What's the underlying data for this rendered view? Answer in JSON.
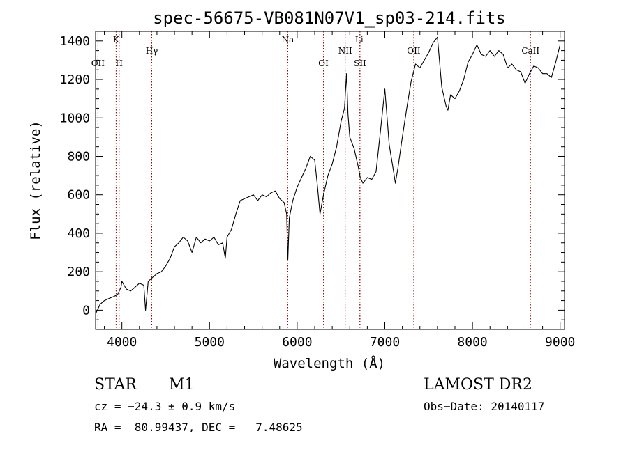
{
  "chart_data": {
    "type": "line",
    "title": "spec-56675-VB081N07V1_sp03-214.fits",
    "xlabel": "Wavelength (Å)",
    "ylabel": "Flux (relative)",
    "xlim": [
      3700,
      9050
    ],
    "ylim": [
      -100,
      1450
    ],
    "x_ticks": [
      4000,
      5000,
      6000,
      7000,
      8000,
      9000
    ],
    "y_ticks": [
      0,
      200,
      400,
      600,
      800,
      1000,
      1200,
      1400
    ],
    "grid": false,
    "series": [
      {
        "x": [
          3700,
          3750,
          3800,
          3850,
          3900,
          3950,
          3990,
          4000,
          4050,
          4100,
          4150,
          4200,
          4250,
          4270,
          4300,
          4350,
          4400,
          4450,
          4500,
          4550,
          4600,
          4650,
          4700,
          4750,
          4800,
          4850,
          4900,
          4950,
          5000,
          5050,
          5100,
          5150,
          5180,
          5200,
          5250,
          5300,
          5350,
          5400,
          5450,
          5500,
          5550,
          5600,
          5650,
          5700,
          5750,
          5800,
          5850,
          5880,
          5893,
          5910,
          5950,
          6000,
          6050,
          6100,
          6150,
          6200,
          6230,
          6260,
          6300,
          6350,
          6400,
          6450,
          6500,
          6540,
          6563,
          6580,
          6600,
          6650,
          6700,
          6720,
          6750,
          6800,
          6850,
          6900,
          6950,
          7000,
          7050,
          7100,
          7120,
          7150,
          7200,
          7250,
          7300,
          7350,
          7400,
          7450,
          7500,
          7550,
          7600,
          7650,
          7700,
          7720,
          7750,
          7800,
          7850,
          7900,
          7950,
          8000,
          8050,
          8100,
          8150,
          8200,
          8250,
          8300,
          8350,
          8400,
          8450,
          8500,
          8550,
          8600,
          8650,
          8700,
          8750,
          8800,
          8850,
          8900,
          8950,
          9000
        ],
        "y": [
          -20,
          30,
          50,
          60,
          70,
          80,
          120,
          150,
          110,
          100,
          120,
          140,
          130,
          0,
          150,
          170,
          190,
          200,
          230,
          270,
          330,
          350,
          380,
          360,
          300,
          380,
          350,
          370,
          360,
          380,
          340,
          350,
          270,
          380,
          420,
          500,
          570,
          580,
          590,
          600,
          570,
          600,
          590,
          610,
          620,
          580,
          560,
          500,
          260,
          480,
          570,
          640,
          690,
          740,
          800,
          780,
          650,
          500,
          600,
          700,
          760,
          850,
          980,
          1050,
          1230,
          1020,
          900,
          840,
          740,
          690,
          660,
          690,
          680,
          720,
          930,
          1150,
          860,
          720,
          660,
          740,
          900,
          1050,
          1190,
          1280,
          1260,
          1300,
          1340,
          1390,
          1420,
          1160,
          1060,
          1040,
          1120,
          1100,
          1140,
          1200,
          1290,
          1330,
          1380,
          1330,
          1320,
          1350,
          1320,
          1350,
          1330,
          1260,
          1280,
          1250,
          1240,
          1180,
          1230,
          1270,
          1260,
          1230,
          1230,
          1210,
          1290,
          1380
        ]
      }
    ],
    "lines": [
      {
        "name": "OII",
        "x": 3727,
        "row": 2
      },
      {
        "name": "K",
        "x": 3934,
        "row": 1
      },
      {
        "name": "H",
        "x": 3969,
        "row": 2
      },
      {
        "name": "Hγ",
        "x": 4341,
        "row": 1.5
      },
      {
        "name": "Na",
        "x": 5893,
        "row": 1
      },
      {
        "name": "OI",
        "x": 6300,
        "row": 2
      },
      {
        "name": "NII",
        "x": 6548,
        "row": 1.5
      },
      {
        "name": "Li",
        "x": 6708,
        "row": 1
      },
      {
        "name": "SII",
        "x": 6717,
        "row": 2
      },
      {
        "name": "OII",
        "x": 7330,
        "row": 1.5
      },
      {
        "name": "CaII",
        "x": 8662,
        "row": 1.5
      }
    ]
  },
  "info": {
    "object_class": "STAR",
    "subclass": "M1",
    "survey": "LAMOST DR2",
    "cz": "cz = −24.3 ± 0.9 km/s",
    "obs_date": "Obs−Date: 20140117",
    "coords": "RA =  80.99437, DEC =   7.48625"
  }
}
